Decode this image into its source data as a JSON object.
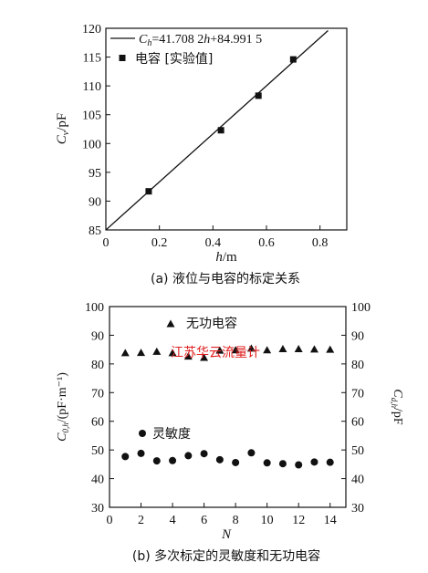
{
  "chart_data": [
    {
      "type": "scatter",
      "caption": "(a) 液位与电容的标定关系",
      "xlabel": "h/m",
      "ylabel": "C_v/pF",
      "xlim": [
        0,
        0.9
      ],
      "ylim": [
        85,
        120
      ],
      "xticks": [
        "0",
        "0.2",
        "0.4",
        "0.6",
        "0.8"
      ],
      "yticks": [
        "85",
        "90",
        "95",
        "100",
        "105",
        "110",
        "115",
        "120"
      ],
      "grid": false,
      "legend_position": "top-left",
      "fit_line": {
        "label": "C_h=41.708 2h+84.991 5",
        "slope": 41.7082,
        "intercept": 84.9915,
        "x_range": [
          0,
          0.83
        ]
      },
      "series": [
        {
          "name": "电容 [实验值]",
          "marker": "square",
          "x": [
            0.16,
            0.43,
            0.57,
            0.7
          ],
          "y": [
            91.7,
            102.3,
            108.3,
            114.6
          ]
        }
      ]
    },
    {
      "type": "scatter",
      "caption": "(b) 多次标定的灵敏度和无功电容",
      "xlabel": "N",
      "ylabel_left": "C_{0,h}/(pF·m⁻¹)",
      "ylabel_right": "C_{d,h}/pF",
      "xlim": [
        0,
        15
      ],
      "ylim": [
        30,
        100
      ],
      "xticks": [
        "0",
        "2",
        "4",
        "6",
        "8",
        "10",
        "12",
        "14"
      ],
      "yticks": [
        "30",
        "40",
        "50",
        "60",
        "70",
        "80",
        "90",
        "100"
      ],
      "grid": false,
      "series": [
        {
          "name": "无功电容",
          "marker": "triangle",
          "x": [
            1,
            2,
            3,
            4,
            5,
            6,
            7,
            8,
            9,
            10,
            11,
            12,
            13,
            14
          ],
          "y": [
            83.8,
            83.9,
            84.3,
            83.8,
            82.6,
            82.2,
            84.7,
            84.8,
            85.4,
            84.8,
            85.2,
            85.2,
            85.1,
            85.0
          ]
        },
        {
          "name": "灵敏度",
          "marker": "circle",
          "x": [
            1,
            2,
            3,
            4,
            5,
            6,
            7,
            8,
            9,
            10,
            11,
            12,
            13,
            14
          ],
          "y": [
            47.7,
            48.8,
            46.2,
            46.3,
            48.0,
            48.7,
            46.6,
            45.6,
            49.0,
            45.5,
            45.2,
            44.8,
            45.8,
            45.7
          ]
        }
      ]
    }
  ],
  "watermark": "江苏华云流量计",
  "colors": {
    "ink": "#111111",
    "watermark": "#e02020",
    "background": "#ffffff"
  }
}
